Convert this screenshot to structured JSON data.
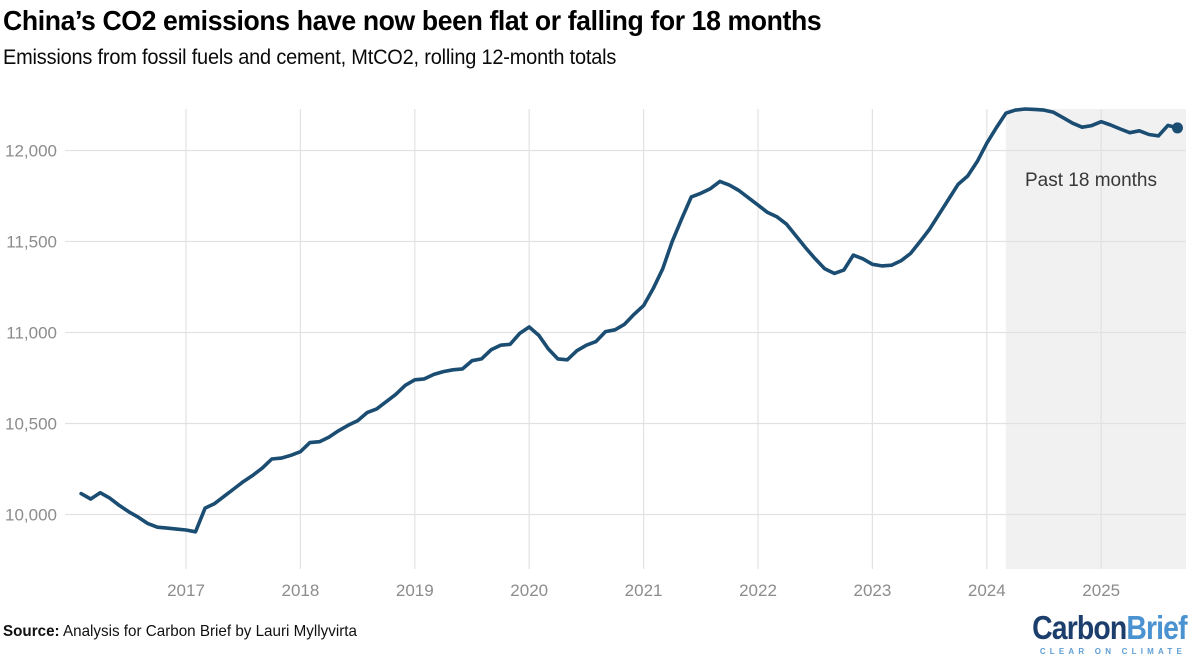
{
  "header": {
    "title": "China’s CO2 emissions have now been flat or falling for 18 months",
    "subtitle": "Emissions from fossil fuels and cement, MtCO2, rolling 12-month totals"
  },
  "chart_data": {
    "type": "line",
    "title": "China’s CO2 emissions have now been flat or falling for 18 months",
    "ylabel": "MtCO2, rolling 12-month totals",
    "unit": "MtCO2",
    "grid": true,
    "line_color": "#1b4d72",
    "grid_color": "#e2e2e2",
    "tick_color": "#8c8c8c",
    "region_fill": "#f1f1f1",
    "x_tick_labels": [
      "2017",
      "2018",
      "2019",
      "2020",
      "2021",
      "2022",
      "2023",
      "2024",
      "2025"
    ],
    "y_ticks": [
      10000,
      10500,
      11000,
      11500,
      12000
    ],
    "y_tick_labels": [
      "10,000",
      "10,500",
      "11,000",
      "11,500",
      "12,000"
    ],
    "ylim": [
      9700,
      12230
    ],
    "months": {
      "start": "2016-02",
      "end": "2025-09",
      "cadence": "monthly"
    },
    "series": [
      {
        "name": "Rolling 12-month CO2 emissions (MtCO2)",
        "values": [
          10115,
          10085,
          10120,
          10090,
          10050,
          10015,
          9985,
          9950,
          9930,
          9925,
          9920,
          9915,
          9905,
          10035,
          10060,
          10100,
          10140,
          10180,
          10215,
          10255,
          10305,
          10310,
          10325,
          10345,
          10395,
          10400,
          10425,
          10460,
          10490,
          10515,
          10560,
          10580,
          10620,
          10660,
          10710,
          10740,
          10745,
          10770,
          10785,
          10795,
          10800,
          10845,
          10855,
          10905,
          10930,
          10935,
          10995,
          11030,
          10985,
          10910,
          10855,
          10850,
          10900,
          10930,
          10950,
          11005,
          11015,
          11045,
          11100,
          11148,
          11240,
          11350,
          11500,
          11625,
          11745,
          11765,
          11790,
          11830,
          11810,
          11780,
          11740,
          11700,
          11660,
          11635,
          11595,
          11530,
          11465,
          11405,
          11350,
          11325,
          11343,
          11425,
          11405,
          11375,
          11366,
          11370,
          11394,
          11434,
          11500,
          11568,
          11650,
          11733,
          11815,
          11860,
          11940,
          12040,
          12125,
          12205,
          12222,
          12228,
          12226,
          12222,
          12210,
          12180,
          12150,
          12128,
          12137,
          12158,
          12140,
          12118,
          12098,
          12108,
          12088,
          12080,
          12138,
          12124
        ]
      }
    ],
    "annotation": {
      "label": "Past 18 months",
      "months_back": 18,
      "region_end": "2025-09"
    },
    "end_marker_value": 12124
  },
  "footer": {
    "source_label": "Source:",
    "source_text": " Analysis for Carbon Brief by Lauri Myllyvirta"
  },
  "logo": {
    "part1": "Carbon",
    "part2": "Brief",
    "tagline": "CLEAR ON CLIMATE"
  }
}
